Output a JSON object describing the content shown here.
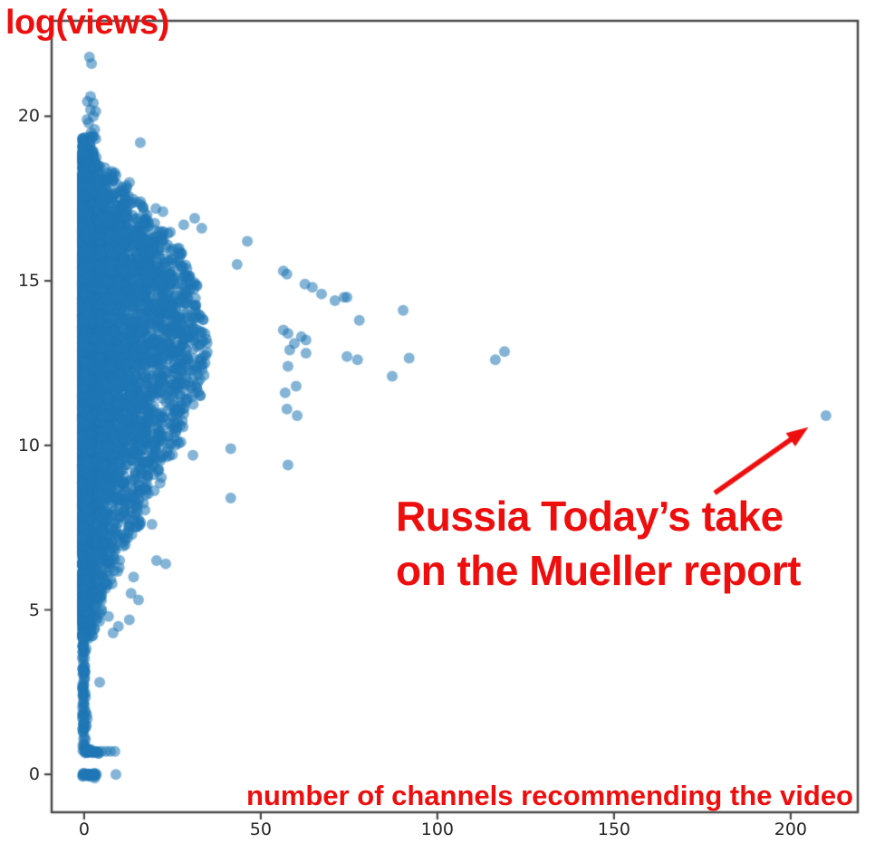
{
  "figure": {
    "background": "#ffffff",
    "accent_red": "#ee0e0e",
    "axis_color": "#4a4a4a",
    "tick_label_color": "#262626"
  },
  "labels": {
    "ylabel": "log(views)",
    "xlabel": "number of channels recommending the video",
    "annotation_line1": "Russia Today’s take",
    "annotation_line2": "on the Mueller report"
  },
  "chart_data": {
    "type": "scatter",
    "title": "",
    "xlabel": "number of channels recommending the video",
    "ylabel": "log(views)",
    "x_ticks": [
      0,
      50,
      100,
      150,
      200
    ],
    "y_ticks": [
      0,
      5,
      10,
      15,
      20
    ],
    "xlim": [
      -9.2,
      219.0
    ],
    "ylim": [
      -1.15,
      22.9
    ],
    "grid": false,
    "legend": null,
    "marker": {
      "color": "#1f77b4",
      "alpha": 0.55,
      "radius_px": 6
    },
    "highlighted_point": {
      "x": 210,
      "y": 10.9,
      "label": "Russia Today’s take on the Mueller report"
    },
    "annotation_arrow": {
      "from": [
        178.5,
        8.55
      ],
      "to": [
        205.0,
        10.55
      ]
    },
    "notable_points": [
      [
        119.0,
        12.85
      ],
      [
        116.4,
        12.6
      ],
      [
        92.0,
        12.65
      ],
      [
        90.3,
        14.1
      ],
      [
        87.2,
        12.1
      ],
      [
        77.9,
        13.8
      ],
      [
        77.4,
        12.6
      ],
      [
        74.4,
        14.5
      ],
      [
        74.4,
        12.7
      ],
      [
        73.6,
        14.5
      ],
      [
        71.0,
        14.4
      ],
      [
        67.2,
        14.6
      ],
      [
        64.6,
        14.8
      ],
      [
        62.8,
        13.2
      ],
      [
        62.8,
        12.8
      ],
      [
        62.5,
        14.9
      ],
      [
        61.5,
        13.3
      ],
      [
        60.3,
        10.9
      ],
      [
        60.0,
        11.8
      ],
      [
        59.5,
        13.1
      ],
      [
        58.2,
        12.9
      ],
      [
        57.7,
        13.4
      ],
      [
        57.7,
        12.4
      ],
      [
        57.7,
        9.4
      ],
      [
        57.4,
        15.2
      ],
      [
        57.4,
        11.1
      ],
      [
        56.9,
        11.6
      ],
      [
        56.4,
        15.3
      ],
      [
        56.4,
        13.5
      ],
      [
        46.2,
        16.2
      ],
      [
        43.3,
        15.5
      ],
      [
        41.5,
        9.9
      ],
      [
        41.5,
        8.4
      ],
      [
        33.3,
        16.6
      ],
      [
        31.3,
        16.9
      ],
      [
        30.8,
        9.7
      ],
      [
        28.2,
        16.7
      ],
      [
        27.4,
        10.1
      ],
      [
        22.3,
        17.1
      ],
      [
        21.5,
        8.85
      ],
      [
        20.3,
        17.2
      ],
      [
        19.2,
        7.6
      ],
      [
        15.9,
        19.2
      ],
      [
        12.0,
        17.9
      ],
      [
        9.0,
        18.2
      ],
      [
        6.4,
        18.1
      ],
      [
        23.1,
        6.4
      ],
      [
        20.5,
        6.5
      ],
      [
        14.0,
        6.0
      ],
      [
        13.3,
        5.5
      ],
      [
        15.4,
        5.3
      ],
      [
        12.8,
        4.7
      ],
      [
        9.7,
        4.5
      ],
      [
        8.2,
        4.3
      ],
      [
        6.9,
        4.8
      ],
      [
        4.4,
        2.8
      ],
      [
        1.5,
        21.8
      ],
      [
        2.1,
        21.6
      ],
      [
        1.8,
        20.6
      ],
      [
        2.6,
        20.4
      ],
      [
        0.9,
        20.45
      ],
      [
        1.8,
        20.2
      ],
      [
        3.3,
        20.15
      ],
      [
        2.6,
        20.0
      ],
      [
        0.8,
        19.9
      ],
      [
        1.3,
        19.8
      ],
      [
        3.0,
        19.6
      ],
      [
        2.0,
        19.5
      ],
      [
        4.9,
        0.7
      ],
      [
        6.2,
        0.7
      ],
      [
        7.4,
        0.7
      ],
      [
        8.7,
        0.7
      ],
      [
        9.0,
        0.0
      ]
    ],
    "dense_cluster": {
      "comment": "Generator spec for ~8500 heavily overplotted videos: a solid column hugging x≈0 for log(views) 4.3–19.35, a funnel spreading right (widest ≈35 channels near log(views)≈13), a sparse column down to 0.8, a short row at log(views)≈0.7 and a clump at 0.",
      "seed": 20190419,
      "x_power": 3.0,
      "column": {
        "n": 2500,
        "x_sigma": 0.95,
        "y_mean": 11.8,
        "y_sd": 3.4,
        "y_min": 4.3,
        "y_max": 19.35
      },
      "bands": [
        [
          18.5,
          19.4,
          4,
          70
        ],
        [
          18.0,
          18.5,
          9,
          90
        ],
        [
          17.5,
          18.0,
          13,
          130
        ],
        [
          17.0,
          17.5,
          17,
          170
        ],
        [
          16.5,
          17.0,
          21,
          210
        ],
        [
          16.0,
          16.5,
          25,
          250
        ],
        [
          15.5,
          16.0,
          28,
          290
        ],
        [
          15.0,
          15.5,
          30,
          310
        ],
        [
          14.5,
          15.0,
          32,
          330
        ],
        [
          14.0,
          14.5,
          33,
          340
        ],
        [
          13.5,
          14.0,
          34,
          340
        ],
        [
          13.0,
          13.5,
          35,
          340
        ],
        [
          12.5,
          13.0,
          35,
          330
        ],
        [
          12.0,
          12.5,
          34,
          320
        ],
        [
          11.5,
          12.0,
          33,
          300
        ],
        [
          11.0,
          11.5,
          31,
          280
        ],
        [
          10.5,
          11.0,
          29,
          260
        ],
        [
          10.0,
          10.5,
          27,
          240
        ],
        [
          9.5,
          10.0,
          25,
          220
        ],
        [
          9.0,
          9.5,
          22,
          190
        ],
        [
          8.5,
          9.0,
          20,
          170
        ],
        [
          8.0,
          8.5,
          18,
          150
        ],
        [
          7.5,
          8.0,
          16,
          130
        ],
        [
          7.0,
          7.5,
          14,
          110
        ],
        [
          6.5,
          7.0,
          12,
          95
        ],
        [
          6.0,
          6.5,
          10,
          85
        ],
        [
          5.5,
          6.0,
          8,
          75
        ],
        [
          5.0,
          5.5,
          7,
          65
        ],
        [
          4.6,
          5.0,
          5,
          55
        ],
        [
          4.2,
          4.6,
          3,
          45
        ]
      ],
      "low_column": {
        "n": 100,
        "x_sigma": 0.55,
        "y_min": 0.8,
        "y_max": 4.3
      },
      "row_ln2": {
        "n": 26,
        "y": 0.7,
        "x_min": -0.5,
        "x_max": 4.2
      },
      "row_zero": {
        "n": 30,
        "y": 0.0,
        "x_min": -0.6,
        "x_max": 3.5
      }
    }
  }
}
